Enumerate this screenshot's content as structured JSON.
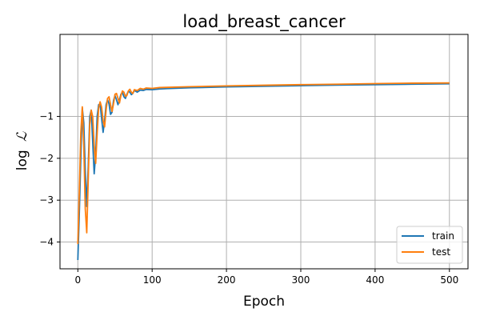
{
  "chart_data": {
    "type": "line",
    "title": "load_breast_cancer",
    "xlabel": "Epoch",
    "ylabel_prefix": "log",
    "ylabel_symbol": "ℒ",
    "xlim": [
      -24,
      525
    ],
    "ylim": [
      -4.64,
      0.96
    ],
    "xticks": [
      0,
      100,
      200,
      300,
      400,
      500
    ],
    "yticks": [
      -4,
      -3,
      -2,
      -1
    ],
    "ytick_labels": [
      "−4",
      "−3",
      "−2",
      "−1"
    ],
    "grid": true,
    "legend_position": "lower-right",
    "series": [
      {
        "name": "train",
        "color": "#1f77b4",
        "points": [
          [
            0,
            -4.43
          ],
          [
            2,
            -3.3
          ],
          [
            4,
            -2.0
          ],
          [
            6,
            -0.8
          ],
          [
            8,
            -1.15
          ],
          [
            10,
            -2.3
          ],
          [
            12,
            -3.15
          ],
          [
            14,
            -2.2
          ],
          [
            16,
            -1.0
          ],
          [
            18,
            -0.85
          ],
          [
            20,
            -1.6
          ],
          [
            22,
            -2.37
          ],
          [
            24,
            -1.9
          ],
          [
            26,
            -1.0
          ],
          [
            28,
            -0.72
          ],
          [
            30,
            -0.7
          ],
          [
            32,
            -1.05
          ],
          [
            34,
            -1.38
          ],
          [
            36,
            -1.1
          ],
          [
            38,
            -0.72
          ],
          [
            40,
            -0.6
          ],
          [
            42,
            -0.7
          ],
          [
            44,
            -0.95
          ],
          [
            46,
            -0.9
          ],
          [
            48,
            -0.62
          ],
          [
            50,
            -0.5
          ],
          [
            52,
            -0.6
          ],
          [
            54,
            -0.72
          ],
          [
            56,
            -0.6
          ],
          [
            58,
            -0.47
          ],
          [
            60,
            -0.43
          ],
          [
            62,
            -0.53
          ],
          [
            64,
            -0.57
          ],
          [
            66,
            -0.47
          ],
          [
            68,
            -0.4
          ],
          [
            70,
            -0.42
          ],
          [
            72,
            -0.48
          ],
          [
            74,
            -0.45
          ],
          [
            76,
            -0.38
          ],
          [
            80,
            -0.42
          ],
          [
            84,
            -0.37
          ],
          [
            88,
            -0.38
          ],
          [
            92,
            -0.355
          ],
          [
            100,
            -0.36
          ],
          [
            110,
            -0.345
          ],
          [
            120,
            -0.335
          ],
          [
            150,
            -0.315
          ],
          [
            200,
            -0.295
          ],
          [
            250,
            -0.28
          ],
          [
            300,
            -0.265
          ],
          [
            350,
            -0.25
          ],
          [
            400,
            -0.24
          ],
          [
            450,
            -0.23
          ],
          [
            500,
            -0.22
          ]
        ]
      },
      {
        "name": "test",
        "color": "#ff7f0e",
        "points": [
          [
            0,
            -4.05
          ],
          [
            2,
            -2.8
          ],
          [
            4,
            -1.4
          ],
          [
            6,
            -0.77
          ],
          [
            8,
            -1.7
          ],
          [
            10,
            -3.2
          ],
          [
            12,
            -3.78
          ],
          [
            14,
            -2.5
          ],
          [
            16,
            -1.2
          ],
          [
            18,
            -0.85
          ],
          [
            20,
            -1.0
          ],
          [
            22,
            -1.7
          ],
          [
            24,
            -2.12
          ],
          [
            26,
            -1.4
          ],
          [
            28,
            -0.8
          ],
          [
            30,
            -0.65
          ],
          [
            32,
            -0.78
          ],
          [
            34,
            -1.1
          ],
          [
            36,
            -1.25
          ],
          [
            38,
            -0.85
          ],
          [
            40,
            -0.57
          ],
          [
            42,
            -0.53
          ],
          [
            44,
            -0.72
          ],
          [
            46,
            -0.88
          ],
          [
            48,
            -0.7
          ],
          [
            50,
            -0.47
          ],
          [
            52,
            -0.45
          ],
          [
            54,
            -0.57
          ],
          [
            56,
            -0.68
          ],
          [
            58,
            -0.5
          ],
          [
            60,
            -0.39
          ],
          [
            62,
            -0.42
          ],
          [
            64,
            -0.52
          ],
          [
            66,
            -0.5
          ],
          [
            68,
            -0.39
          ],
          [
            70,
            -0.35
          ],
          [
            72,
            -0.42
          ],
          [
            74,
            -0.45
          ],
          [
            76,
            -0.36
          ],
          [
            80,
            -0.38
          ],
          [
            84,
            -0.33
          ],
          [
            88,
            -0.35
          ],
          [
            92,
            -0.32
          ],
          [
            100,
            -0.33
          ],
          [
            110,
            -0.31
          ],
          [
            120,
            -0.305
          ],
          [
            150,
            -0.29
          ],
          [
            200,
            -0.27
          ],
          [
            250,
            -0.255
          ],
          [
            300,
            -0.24
          ],
          [
            350,
            -0.23
          ],
          [
            400,
            -0.215
          ],
          [
            450,
            -0.205
          ],
          [
            500,
            -0.2
          ]
        ]
      }
    ]
  }
}
